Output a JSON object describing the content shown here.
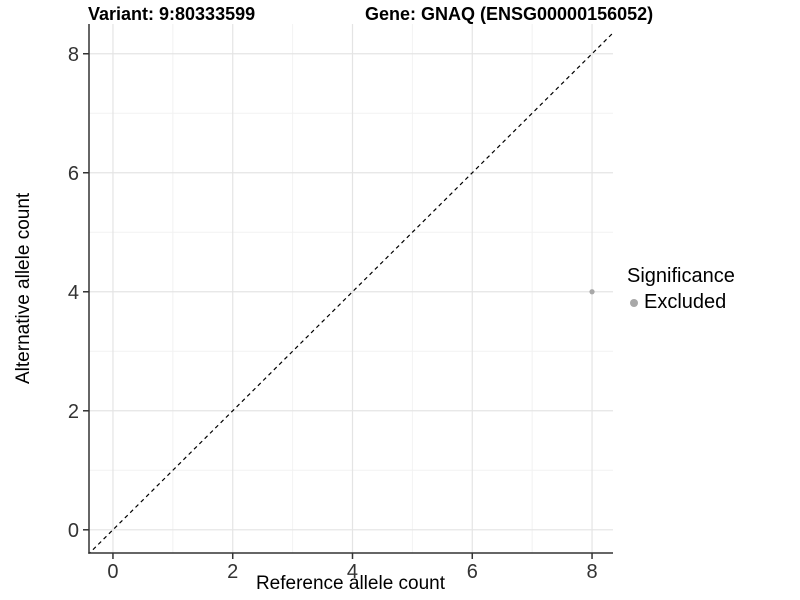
{
  "header": {
    "variant_title": "Variant: 9:80333599",
    "gene_title": "Gene: GNAQ (ENSG00000156052)"
  },
  "legend": {
    "title": "Significance",
    "items": [
      {
        "label": "Excluded",
        "color": "#a8a8a8"
      }
    ]
  },
  "colors": {
    "background": "#ffffff",
    "major_grid": "#e4e4e4",
    "minor_grid": "#f2f2f2",
    "axis_line": "#333333",
    "tick_mark": "#333333",
    "tick_label": "#333333",
    "identity_line": "#000000",
    "point": "#a8a8a8"
  },
  "chart_data": {
    "type": "scatter",
    "title": "Variant: 9:80333599 | Gene: GNAQ (ENSG00000156052)",
    "xlabel": "Reference allele count",
    "ylabel": "Alternative allele count",
    "xlim": [
      -0.4,
      8.35
    ],
    "ylim": [
      -0.39,
      8.5
    ],
    "x_ticks": [
      0,
      2,
      4,
      6,
      8
    ],
    "y_ticks": [
      0,
      2,
      4,
      6,
      8
    ],
    "x_minor_ticks": [
      1,
      3,
      5,
      7
    ],
    "y_minor_ticks": [
      1,
      3,
      5,
      7
    ],
    "grid": true,
    "legend_position": "right",
    "series": [
      {
        "name": "Excluded",
        "color": "#a8a8a8",
        "points": [
          {
            "x": 8,
            "y": 4
          }
        ]
      }
    ],
    "reference_line": {
      "type": "identity",
      "equation": "y = x",
      "style": "dashed",
      "color": "#000000"
    }
  }
}
